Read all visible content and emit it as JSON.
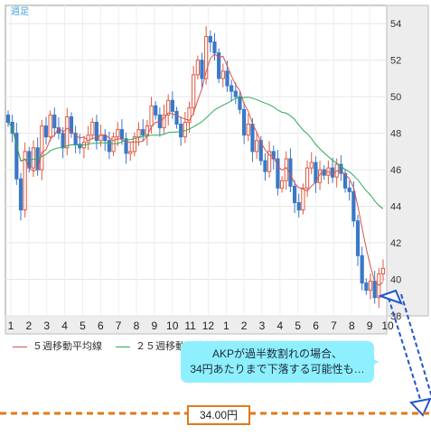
{
  "chart_data": {
    "type": "candlestick",
    "period_label": "週足",
    "ylim": [
      38,
      55
    ],
    "y_ticks": [
      "54",
      "52",
      "50",
      "48",
      "46",
      "44",
      "42",
      "40",
      "38"
    ],
    "x_tick_labels": [
      "1",
      "2",
      "3",
      "4",
      "5",
      "6",
      "7",
      "8",
      "9",
      "10",
      "11",
      "12",
      "1",
      "2",
      "3",
      "4",
      "5",
      "6",
      "7",
      "8",
      "9",
      "10"
    ],
    "grid": true,
    "close_values": [
      48.6,
      48.0,
      45.5,
      43.8,
      47.0,
      46.1,
      47.2,
      46.0,
      48.4,
      47.8,
      49.0,
      48.3,
      48.0,
      47.2,
      48.9,
      48.0,
      47.4,
      47.2,
      47.5,
      47.9,
      48.6,
      47.6,
      47.9,
      47.6,
      47.0,
      47.8,
      48.2,
      47.7,
      46.9,
      47.0,
      47.8,
      48.2,
      47.9,
      48.4,
      49.5,
      49.0,
      48.3,
      49.0,
      49.8,
      49.2,
      48.5,
      47.8,
      48.6,
      49.4,
      51.2,
      52.0,
      51.0,
      53.3,
      53.0,
      52.4,
      51.0,
      51.4,
      50.6,
      50.3,
      50.0,
      49.3,
      47.9,
      48.5,
      47.0,
      47.6,
      46.5,
      45.9,
      47.0,
      46.6,
      45.0,
      45.4,
      46.6,
      45.1,
      44.2,
      43.8,
      45.0,
      46.1,
      46.4,
      45.3,
      46.0,
      45.7,
      46.1,
      45.6,
      46.3,
      45.8,
      45.0,
      44.8,
      43.2,
      41.3,
      39.8,
      39.4,
      39.9,
      39.0,
      40.3,
      40.6
    ],
    "series": [
      {
        "name": "５週移動平均線",
        "color": "#d9534f"
      },
      {
        "name": "２５週移動平均線",
        "color": "#2eaa5a"
      }
    ],
    "annotation": {
      "text_line1": "AKPが過半数割れの場合、",
      "text_line2": "34円あたりまで下落する可能性も…",
      "target_label": "34.00円",
      "target_value": 34.0
    }
  }
}
